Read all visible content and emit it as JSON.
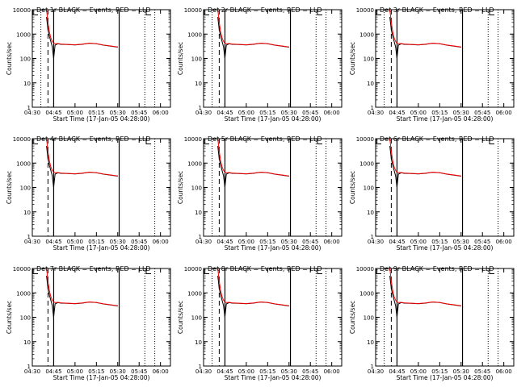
{
  "chart_data": {
    "type": "line",
    "scale": {
      "y": "log"
    },
    "ylim": [
      1,
      10000
    ],
    "xlim": [
      "04:30",
      "06:07"
    ],
    "x_tick_labels": [
      "04:30",
      "04:45",
      "05:00",
      "05:15",
      "05:30",
      "05:45",
      "06:00"
    ],
    "y_tick_labels": [
      "1",
      "10",
      "100",
      "1000",
      "10000"
    ],
    "ylabel": "Counts/sec",
    "xlabel": "Start Time (17-Jan-05 04:28:00)",
    "legend": "BLACK = Events, RED = LLD",
    "series_colors": {
      "events": "#000000",
      "lld": "#ff0000"
    },
    "panels": [
      {
        "title": "Det 1r",
        "dotted_markers": [
          "04:36",
          "05:49",
          "05:56"
        ]
      },
      {
        "title": "Det 2r",
        "dotted_markers": [
          "04:36",
          "05:49",
          "05:56"
        ]
      },
      {
        "title": "Det 3r",
        "dotted_markers": [
          "04:36",
          "05:49",
          "05:56"
        ]
      },
      {
        "title": "Det 4r",
        "dotted_markers": [
          "05:56"
        ]
      },
      {
        "title": "Det 5r",
        "dotted_markers": [
          "04:36",
          "05:49",
          "05:56"
        ]
      },
      {
        "title": "Det 6r",
        "dotted_markers": [
          "05:56"
        ]
      },
      {
        "title": "Det 7r",
        "dotted_markers": [
          "05:49",
          "05:56"
        ]
      },
      {
        "title": "Det 8r",
        "dotted_markers": [
          "04:36",
          "05:49",
          "05:56"
        ]
      },
      {
        "title": "Det 9r",
        "dotted_markers": [
          "04:36",
          "05:49",
          "05:56"
        ]
      }
    ],
    "vertical_markers": {
      "dashed": "04:41",
      "solid": [
        "04:45",
        "05:31"
      ]
    },
    "events": {
      "x": [
        "04:40",
        "04:41",
        "04:42",
        "04:43",
        "04:44",
        "04:45",
        "04:46",
        "04:48",
        "04:50",
        "04:55",
        "05:00",
        "05:05",
        "05:10",
        "05:15",
        "05:20",
        "05:25",
        "05:30"
      ],
      "y": [
        5000,
        1500,
        800,
        500,
        300,
        100,
        350,
        400,
        380,
        370,
        360,
        380,
        420,
        400,
        350,
        320,
        290
      ]
    },
    "lld": {
      "x": [
        "04:40",
        "04:41",
        "04:42",
        "04:43",
        "04:44",
        "04:45",
        "04:46",
        "04:48",
        "04:50",
        "04:55",
        "05:00",
        "05:05",
        "05:10",
        "05:15",
        "05:20",
        "05:25",
        "05:30"
      ],
      "y": [
        10000,
        3000,
        1200,
        700,
        500,
        420,
        400,
        410,
        390,
        375,
        365,
        385,
        425,
        405,
        355,
        325,
        295
      ]
    }
  }
}
